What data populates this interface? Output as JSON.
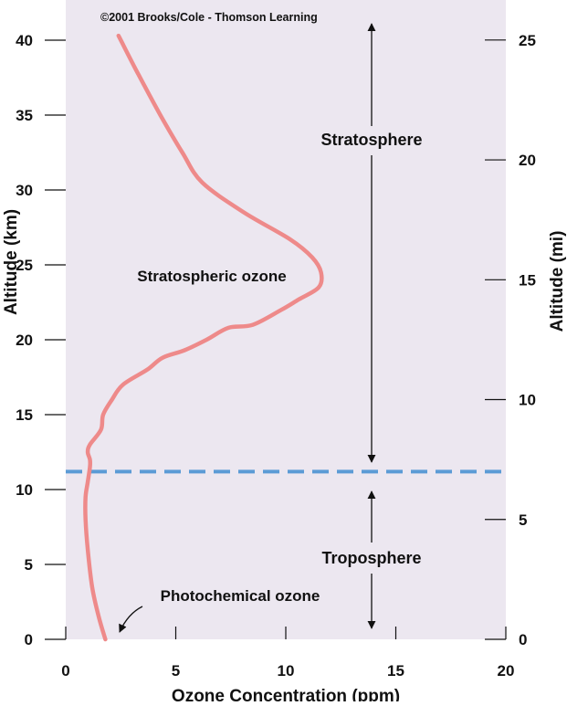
{
  "chart_data": {
    "type": "line",
    "credit": "©2001 Brooks/Cole - Thomson Learning",
    "xlabel": "Ozone Concentration (ppm)",
    "ylabel": "Altitude (km)",
    "y2label": "Altitude (mi)",
    "xlim": [
      0,
      20
    ],
    "ylim": [
      0,
      40
    ],
    "y2lim": [
      0,
      25
    ],
    "x_ticks": [
      0,
      5,
      10,
      15,
      20
    ],
    "y_ticks": [
      0,
      5,
      10,
      15,
      20,
      25,
      30,
      35,
      40
    ],
    "y2_ticks": [
      0,
      5,
      10,
      15,
      20,
      25
    ],
    "grid": false,
    "colors": {
      "plot_background": "#ece7f0",
      "ozone_curve": "#ee8a8a",
      "tropopause_line": "#5b9bd5",
      "text": "#111111"
    },
    "series": [
      {
        "x": [
          1.8,
          1.5,
          1.2,
          1.0,
          0.9,
          0.9,
          1.0,
          1.1,
          1.1,
          1.0,
          1.1,
          1.6,
          1.7,
          2.1,
          2.6,
          3.7,
          4.4,
          5.4,
          6.4,
          7.4,
          8.5,
          9.8,
          10.6,
          11.5,
          11.6,
          11.2,
          10.2,
          8.1,
          6.2,
          5.3,
          4.3,
          3.2,
          2.4
        ],
        "y": [
          0,
          1.5,
          3.5,
          6,
          8,
          9.5,
          10.5,
          11.5,
          12,
          12.5,
          13,
          14,
          15,
          16,
          17,
          18,
          18.8,
          19.3,
          20.0,
          20.8,
          21.0,
          22.0,
          22.7,
          23.5,
          24.5,
          25.5,
          26.7,
          28.5,
          30.5,
          32.5,
          35.0,
          38.0,
          40.3
        ]
      }
    ],
    "reference_lines": [
      {
        "axis": "y",
        "value": 11.2,
        "style": "dashed"
      }
    ],
    "annotations": {
      "stratosphere": "Stratosphere",
      "troposphere": "Troposphere",
      "stratospheric_ozone": "Stratospheric ozone",
      "photochemical_ozone": "Photochemical ozone"
    }
  }
}
